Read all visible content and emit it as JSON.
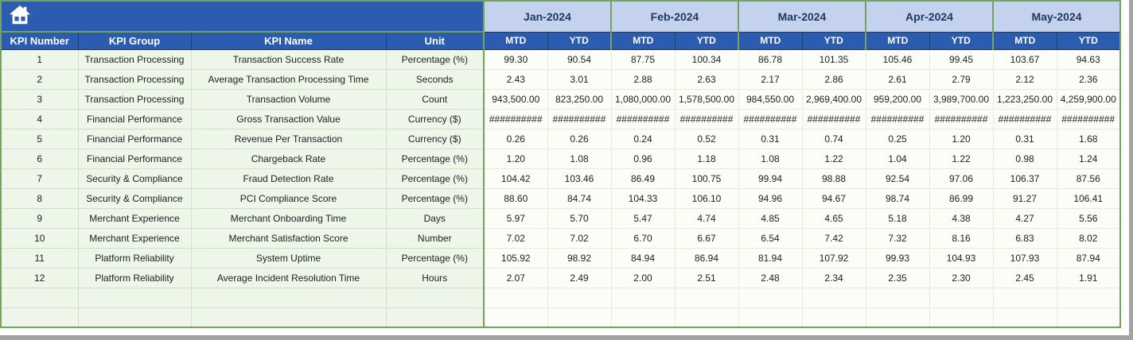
{
  "banner": {
    "icon": "home"
  },
  "colors": {
    "header_blue": "#2b5cb0",
    "month_header_fill": "#c4d2ee",
    "month_header_text": "#1f3864",
    "grid_green": "#74a457",
    "left_cell_fill": "#edf6e9",
    "value_cell_fill": "#fcfdf9",
    "window_edge_gray": "#a3a3a3"
  },
  "table": {
    "columns": [
      "KPI Number",
      "KPI Group",
      "KPI Name",
      "Unit"
    ],
    "months": [
      "Jan-2024",
      "Feb-2024",
      "Mar-2024",
      "Apr-2024",
      "May-2024"
    ],
    "period_headers": [
      "MTD",
      "YTD"
    ],
    "overflow_marker": "##########",
    "empty_row_count": 2,
    "rows": [
      {
        "kpi_number": "1",
        "kpi_group": "Transaction Processing",
        "kpi_name": "Transaction Success Rate",
        "unit": "Percentage (%)",
        "values": [
          "99.30",
          "90.54",
          "87.75",
          "100.34",
          "86.78",
          "101.35",
          "105.46",
          "99.45",
          "103.67",
          "94.63"
        ]
      },
      {
        "kpi_number": "2",
        "kpi_group": "Transaction Processing",
        "kpi_name": "Average Transaction Processing Time",
        "unit": "Seconds",
        "values": [
          "2.43",
          "3.01",
          "2.88",
          "2.63",
          "2.17",
          "2.86",
          "2.61",
          "2.79",
          "2.12",
          "2.36"
        ]
      },
      {
        "kpi_number": "3",
        "kpi_group": "Transaction Processing",
        "kpi_name": "Transaction Volume",
        "unit": "Count",
        "values": [
          "943,500.00",
          "823,250.00",
          "1,080,000.00",
          "1,578,500.00",
          "984,550.00",
          "2,969,400.00",
          "959,200.00",
          "3,989,700.00",
          "1,223,250.00",
          "4,259,900.00"
        ]
      },
      {
        "kpi_number": "4",
        "kpi_group": "Financial Performance",
        "kpi_name": "Gross Transaction Value",
        "unit": "Currency ($)",
        "values": [
          "##########",
          "##########",
          "##########",
          "##########",
          "##########",
          "##########",
          "##########",
          "##########",
          "##########",
          "##########"
        ]
      },
      {
        "kpi_number": "5",
        "kpi_group": "Financial Performance",
        "kpi_name": "Revenue Per Transaction",
        "unit": "Currency ($)",
        "values": [
          "0.26",
          "0.26",
          "0.24",
          "0.52",
          "0.31",
          "0.74",
          "0.25",
          "1.20",
          "0.31",
          "1.68"
        ]
      },
      {
        "kpi_number": "6",
        "kpi_group": "Financial Performance",
        "kpi_name": "Chargeback Rate",
        "unit": "Percentage (%)",
        "values": [
          "1.20",
          "1.08",
          "0.96",
          "1.18",
          "1.08",
          "1.22",
          "1.04",
          "1.22",
          "0.98",
          "1.24"
        ]
      },
      {
        "kpi_number": "7",
        "kpi_group": "Security & Compliance",
        "kpi_name": "Fraud Detection Rate",
        "unit": "Percentage (%)",
        "values": [
          "104.42",
          "103.46",
          "86.49",
          "100.75",
          "99.94",
          "98.88",
          "92.54",
          "97.06",
          "106.37",
          "87.56"
        ]
      },
      {
        "kpi_number": "8",
        "kpi_group": "Security & Compliance",
        "kpi_name": "PCI Compliance Score",
        "unit": "Percentage (%)",
        "values": [
          "88.60",
          "84.74",
          "104.33",
          "106.10",
          "94.96",
          "94.67",
          "98.74",
          "86.99",
          "91.27",
          "106.41"
        ]
      },
      {
        "kpi_number": "9",
        "kpi_group": "Merchant Experience",
        "kpi_name": "Merchant Onboarding Time",
        "unit": "Days",
        "values": [
          "5.97",
          "5.70",
          "5.47",
          "4.74",
          "4.85",
          "4.65",
          "5.18",
          "4.38",
          "4.27",
          "5.56"
        ]
      },
      {
        "kpi_number": "10",
        "kpi_group": "Merchant Experience",
        "kpi_name": "Merchant Satisfaction Score",
        "unit": "Number",
        "values": [
          "7.02",
          "7.02",
          "6.70",
          "6.67",
          "6.54",
          "7.42",
          "7.32",
          "8.16",
          "6.83",
          "8.02"
        ]
      },
      {
        "kpi_number": "11",
        "kpi_group": "Platform Reliability",
        "kpi_name": "System Uptime",
        "unit": "Percentage (%)",
        "values": [
          "105.92",
          "98.92",
          "84.94",
          "86.94",
          "81.94",
          "107.92",
          "99.93",
          "104.93",
          "107.93",
          "87.94"
        ]
      },
      {
        "kpi_number": "12",
        "kpi_group": "Platform Reliability",
        "kpi_name": "Average Incident Resolution Time",
        "unit": "Hours",
        "values": [
          "2.07",
          "2.49",
          "2.00",
          "2.51",
          "2.48",
          "2.34",
          "2.35",
          "2.30",
          "2.45",
          "1.91"
        ]
      }
    ]
  }
}
